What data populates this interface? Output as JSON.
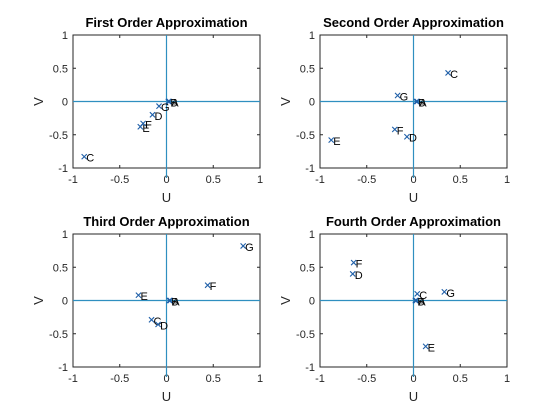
{
  "chart_data": [
    {
      "type": "scatter",
      "title": "First Order Approximation",
      "xlabel": "U",
      "ylabel": "V",
      "xlim": [
        -1,
        1
      ],
      "ylim": [
        -1,
        1
      ],
      "xticks": [
        "-1",
        "-0.5",
        "0",
        "0.5",
        "1"
      ],
      "yticks": [
        "-1",
        "-0.5",
        "0",
        "0.5",
        "1"
      ],
      "points": [
        {
          "label": "A",
          "x": 0.03,
          "y": 0.0
        },
        {
          "label": "B",
          "x": 0.02,
          "y": 0.0
        },
        {
          "label": "C",
          "x": -0.88,
          "y": -0.83
        },
        {
          "label": "D",
          "x": -0.15,
          "y": -0.2
        },
        {
          "label": "E",
          "x": -0.28,
          "y": -0.38
        },
        {
          "label": "F",
          "x": -0.25,
          "y": -0.33
        },
        {
          "label": "G",
          "x": -0.08,
          "y": -0.07
        }
      ]
    },
    {
      "type": "scatter",
      "title": "Second Order Approximation",
      "xlabel": "U",
      "ylabel": "V",
      "xlim": [
        -1,
        1
      ],
      "ylim": [
        -1,
        1
      ],
      "xticks": [
        "-1",
        "-0.5",
        "0",
        "0.5",
        "1"
      ],
      "yticks": [
        "-1",
        "-0.5",
        "0",
        "0.5",
        "1"
      ],
      "points": [
        {
          "label": "A",
          "x": 0.04,
          "y": 0.0
        },
        {
          "label": "B",
          "x": 0.03,
          "y": 0.0
        },
        {
          "label": "C",
          "x": 0.37,
          "y": 0.43
        },
        {
          "label": "D",
          "x": -0.07,
          "y": -0.53
        },
        {
          "label": "E",
          "x": -0.88,
          "y": -0.58
        },
        {
          "label": "F",
          "x": -0.2,
          "y": -0.42
        },
        {
          "label": "G",
          "x": -0.17,
          "y": 0.09
        }
      ]
    },
    {
      "type": "scatter",
      "title": "Third Order Approximation",
      "xlabel": "U",
      "ylabel": "V",
      "xlim": [
        -1,
        1
      ],
      "ylim": [
        -1,
        1
      ],
      "xticks": [
        "-1",
        "-0.5",
        "0",
        "0.5",
        "1"
      ],
      "yticks": [
        "-1",
        "-0.5",
        "0",
        "0.5",
        "1"
      ],
      "points": [
        {
          "label": "A",
          "x": 0.04,
          "y": 0.0
        },
        {
          "label": "B",
          "x": 0.03,
          "y": 0.0
        },
        {
          "label": "C",
          "x": -0.16,
          "y": -0.29
        },
        {
          "label": "D",
          "x": -0.09,
          "y": -0.36
        },
        {
          "label": "E",
          "x": -0.3,
          "y": 0.08
        },
        {
          "label": "F",
          "x": 0.44,
          "y": 0.23
        },
        {
          "label": "G",
          "x": 0.82,
          "y": 0.82
        }
      ]
    },
    {
      "type": "scatter",
      "title": "Fourth Order Approximation",
      "xlabel": "U",
      "ylabel": "V",
      "xlim": [
        -1,
        1
      ],
      "ylim": [
        -1,
        1
      ],
      "xticks": [
        "-1",
        "-0.5",
        "0",
        "0.5",
        "1"
      ],
      "yticks": [
        "-1",
        "-0.5",
        "0",
        "0.5",
        "1"
      ],
      "points": [
        {
          "label": "A",
          "x": 0.03,
          "y": 0.0
        },
        {
          "label": "B",
          "x": 0.02,
          "y": 0.0
        },
        {
          "label": "C",
          "x": 0.04,
          "y": 0.1
        },
        {
          "label": "D",
          "x": -0.65,
          "y": 0.4
        },
        {
          "label": "E",
          "x": 0.13,
          "y": -0.69
        },
        {
          "label": "F",
          "x": -0.64,
          "y": 0.57
        },
        {
          "label": "G",
          "x": 0.33,
          "y": 0.13
        }
      ]
    }
  ]
}
